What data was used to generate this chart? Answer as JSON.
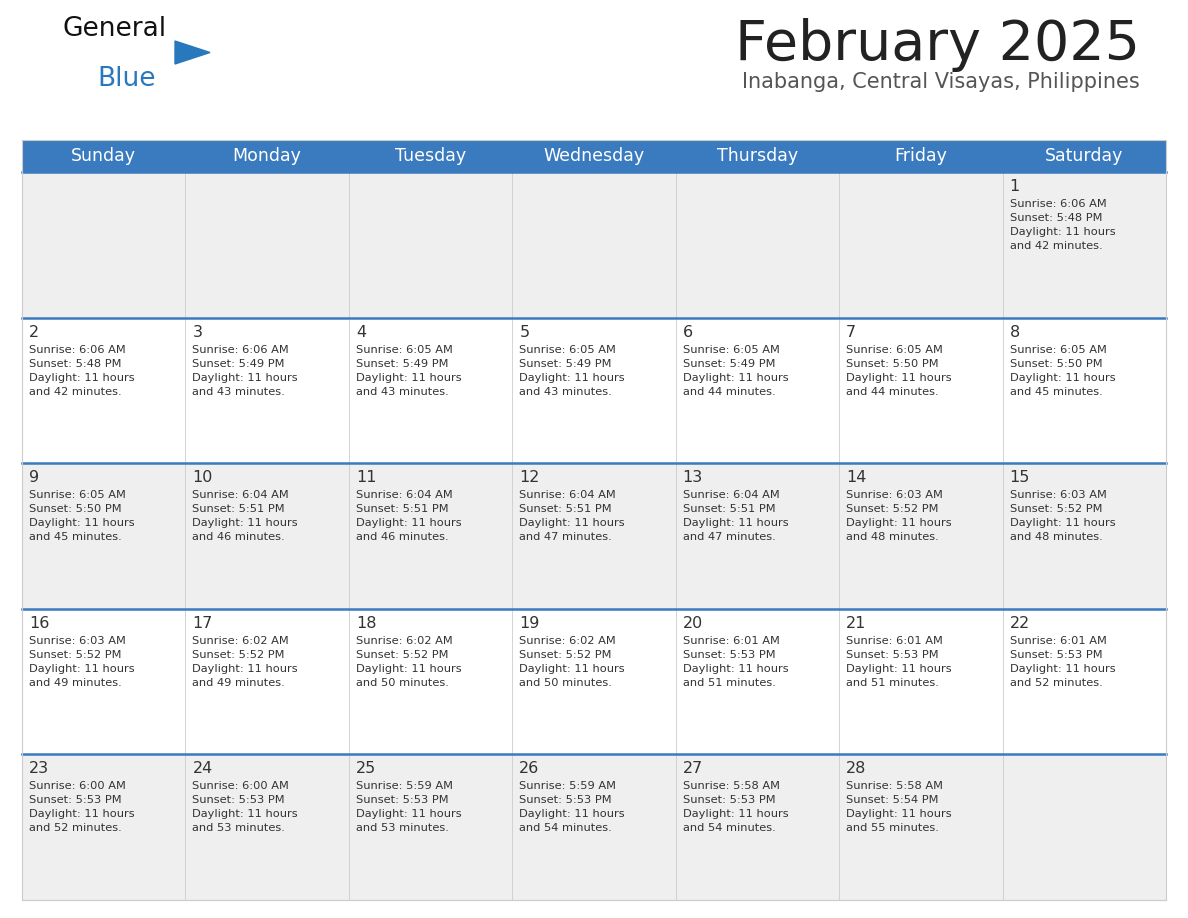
{
  "title": "February 2025",
  "subtitle": "Inabanga, Central Visayas, Philippines",
  "header_bg": "#3A7BBF",
  "header_text": "#FFFFFF",
  "row_bg_light": "#EFEFEF",
  "row_bg_white": "#FFFFFF",
  "separator_color": "#3A7BBF",
  "cell_line_color": "#CCCCCC",
  "day_headers": [
    "Sunday",
    "Monday",
    "Tuesday",
    "Wednesday",
    "Thursday",
    "Friday",
    "Saturday"
  ],
  "title_color": "#222222",
  "subtitle_color": "#555555",
  "number_color": "#333333",
  "info_color": "#333333",
  "logo_black": "#111111",
  "logo_blue": "#2878BE",
  "triangle_color": "#2878BE",
  "calendar": [
    [
      null,
      null,
      null,
      null,
      null,
      null,
      {
        "day": 1,
        "sunrise": "6:06 AM",
        "sunset": "5:48 PM",
        "daylight": "11 hours",
        "daylight2": "and 42 minutes."
      }
    ],
    [
      {
        "day": 2,
        "sunrise": "6:06 AM",
        "sunset": "5:48 PM",
        "daylight": "11 hours",
        "daylight2": "and 42 minutes."
      },
      {
        "day": 3,
        "sunrise": "6:06 AM",
        "sunset": "5:49 PM",
        "daylight": "11 hours",
        "daylight2": "and 43 minutes."
      },
      {
        "day": 4,
        "sunrise": "6:05 AM",
        "sunset": "5:49 PM",
        "daylight": "11 hours",
        "daylight2": "and 43 minutes."
      },
      {
        "day": 5,
        "sunrise": "6:05 AM",
        "sunset": "5:49 PM",
        "daylight": "11 hours",
        "daylight2": "and 43 minutes."
      },
      {
        "day": 6,
        "sunrise": "6:05 AM",
        "sunset": "5:49 PM",
        "daylight": "11 hours",
        "daylight2": "and 44 minutes."
      },
      {
        "day": 7,
        "sunrise": "6:05 AM",
        "sunset": "5:50 PM",
        "daylight": "11 hours",
        "daylight2": "and 44 minutes."
      },
      {
        "day": 8,
        "sunrise": "6:05 AM",
        "sunset": "5:50 PM",
        "daylight": "11 hours",
        "daylight2": "and 45 minutes."
      }
    ],
    [
      {
        "day": 9,
        "sunrise": "6:05 AM",
        "sunset": "5:50 PM",
        "daylight": "11 hours",
        "daylight2": "and 45 minutes."
      },
      {
        "day": 10,
        "sunrise": "6:04 AM",
        "sunset": "5:51 PM",
        "daylight": "11 hours",
        "daylight2": "and 46 minutes."
      },
      {
        "day": 11,
        "sunrise": "6:04 AM",
        "sunset": "5:51 PM",
        "daylight": "11 hours",
        "daylight2": "and 46 minutes."
      },
      {
        "day": 12,
        "sunrise": "6:04 AM",
        "sunset": "5:51 PM",
        "daylight": "11 hours",
        "daylight2": "and 47 minutes."
      },
      {
        "day": 13,
        "sunrise": "6:04 AM",
        "sunset": "5:51 PM",
        "daylight": "11 hours",
        "daylight2": "and 47 minutes."
      },
      {
        "day": 14,
        "sunrise": "6:03 AM",
        "sunset": "5:52 PM",
        "daylight": "11 hours",
        "daylight2": "and 48 minutes."
      },
      {
        "day": 15,
        "sunrise": "6:03 AM",
        "sunset": "5:52 PM",
        "daylight": "11 hours",
        "daylight2": "and 48 minutes."
      }
    ],
    [
      {
        "day": 16,
        "sunrise": "6:03 AM",
        "sunset": "5:52 PM",
        "daylight": "11 hours",
        "daylight2": "and 49 minutes."
      },
      {
        "day": 17,
        "sunrise": "6:02 AM",
        "sunset": "5:52 PM",
        "daylight": "11 hours",
        "daylight2": "and 49 minutes."
      },
      {
        "day": 18,
        "sunrise": "6:02 AM",
        "sunset": "5:52 PM",
        "daylight": "11 hours",
        "daylight2": "and 50 minutes."
      },
      {
        "day": 19,
        "sunrise": "6:02 AM",
        "sunset": "5:52 PM",
        "daylight": "11 hours",
        "daylight2": "and 50 minutes."
      },
      {
        "day": 20,
        "sunrise": "6:01 AM",
        "sunset": "5:53 PM",
        "daylight": "11 hours",
        "daylight2": "and 51 minutes."
      },
      {
        "day": 21,
        "sunrise": "6:01 AM",
        "sunset": "5:53 PM",
        "daylight": "11 hours",
        "daylight2": "and 51 minutes."
      },
      {
        "day": 22,
        "sunrise": "6:01 AM",
        "sunset": "5:53 PM",
        "daylight": "11 hours",
        "daylight2": "and 52 minutes."
      }
    ],
    [
      {
        "day": 23,
        "sunrise": "6:00 AM",
        "sunset": "5:53 PM",
        "daylight": "11 hours",
        "daylight2": "and 52 minutes."
      },
      {
        "day": 24,
        "sunrise": "6:00 AM",
        "sunset": "5:53 PM",
        "daylight": "11 hours",
        "daylight2": "and 53 minutes."
      },
      {
        "day": 25,
        "sunrise": "5:59 AM",
        "sunset": "5:53 PM",
        "daylight": "11 hours",
        "daylight2": "and 53 minutes."
      },
      {
        "day": 26,
        "sunrise": "5:59 AM",
        "sunset": "5:53 PM",
        "daylight": "11 hours",
        "daylight2": "and 54 minutes."
      },
      {
        "day": 27,
        "sunrise": "5:58 AM",
        "sunset": "5:53 PM",
        "daylight": "11 hours",
        "daylight2": "and 54 minutes."
      },
      {
        "day": 28,
        "sunrise": "5:58 AM",
        "sunset": "5:54 PM",
        "daylight": "11 hours",
        "daylight2": "and 55 minutes."
      },
      null
    ]
  ]
}
